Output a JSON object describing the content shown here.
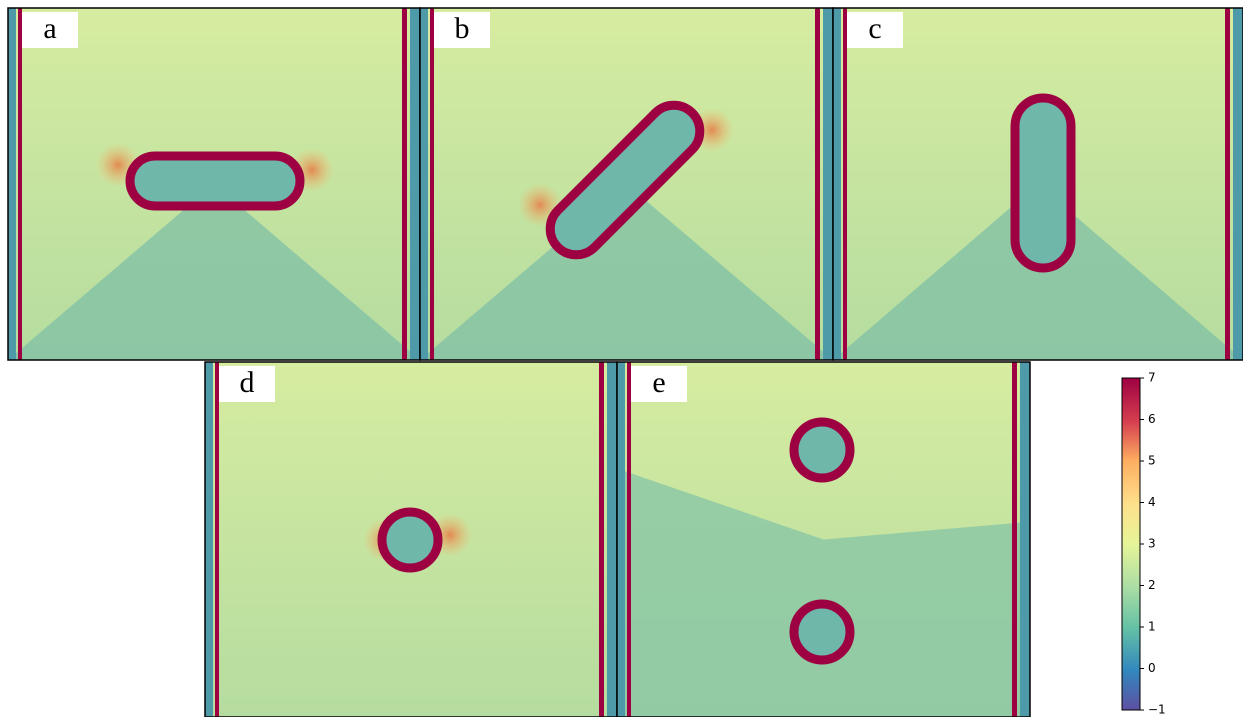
{
  "panels": [
    {
      "label": "a"
    },
    {
      "label": "b"
    },
    {
      "label": "c"
    },
    {
      "label": "d"
    },
    {
      "label": "e"
    }
  ],
  "colorbar": {
    "lim": [
      -1,
      7
    ],
    "ticks": [
      {
        "value": -1,
        "label": "−1"
      },
      0,
      1,
      2,
      3,
      4,
      5,
      6,
      7
    ]
  }
}
